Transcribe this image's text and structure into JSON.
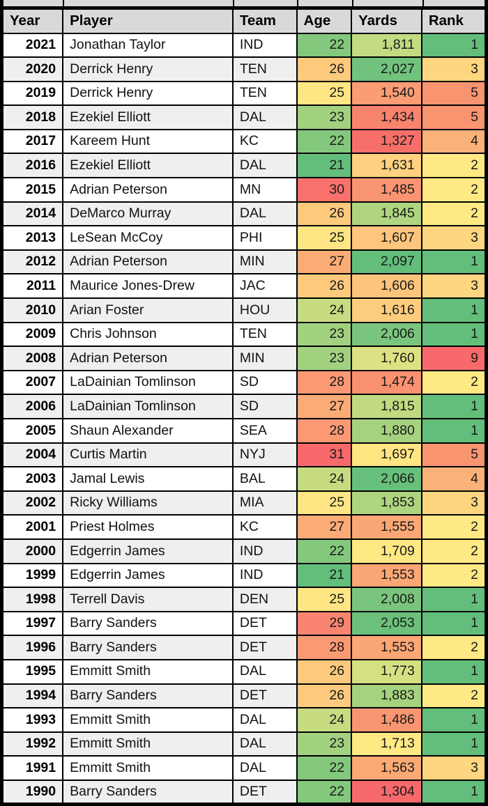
{
  "styles": {
    "header_bg": "#D9D9D9",
    "row_odd_bg": "#FFFFFF",
    "row_even_bg": "#EFEFEF",
    "border_color": "#000000",
    "scale_low_color": "#F8696B",
    "scale_mid_color": "#FFEB84",
    "scale_high_color": "#63BE7B"
  },
  "chart_data": {
    "type": "table",
    "columns": [
      "Year",
      "Player",
      "Team",
      "Age",
      "Yards",
      "Rank"
    ],
    "conditional_formatting": "3-color scale (green-yellow-red) applied to Age, Yards and Rank columns",
    "rows": [
      {
        "year": "2021",
        "player": "Jonathan Taylor",
        "team": "IND",
        "age": "22",
        "yards": "1,811",
        "rank": "1",
        "age_color": "#84C87D",
        "yards_color": "#C3DB81",
        "rank_color": "#63BE7B"
      },
      {
        "year": "2020",
        "player": "Derrick Henry",
        "team": "TEN",
        "age": "26",
        "yards": "2,027",
        "rank": "3",
        "age_color": "#FDCA7D",
        "yards_color": "#70C27C",
        "rank_color": "#FDD67F"
      },
      {
        "year": "2019",
        "player": "Derrick Henry",
        "team": "TEN",
        "age": "25",
        "yards": "1,540",
        "rank": "5",
        "age_color": "#FFE583",
        "yards_color": "#FA9C74",
        "rank_color": "#F99470"
      },
      {
        "year": "2018",
        "player": "Ezekiel Elliott",
        "team": "DAL",
        "age": "23",
        "yards": "1,434",
        "rank": "5",
        "age_color": "#A2D17F",
        "yards_color": "#F9846E",
        "rank_color": "#F99470"
      },
      {
        "year": "2017",
        "player": "Kareem Hunt",
        "team": "KC",
        "age": "22",
        "yards": "1,327",
        "rank": "4",
        "age_color": "#84C87D",
        "yards_color": "#F86F6A",
        "rank_color": "#FBB278"
      },
      {
        "year": "2016",
        "player": "Ezekiel Elliott",
        "team": "DAL",
        "age": "21",
        "yards": "1,631",
        "rank": "2",
        "age_color": "#63BE7B",
        "yards_color": "#FDD17F",
        "rank_color": "#FEE984"
      },
      {
        "year": "2015",
        "player": "Adrian Peterson",
        "team": "MN",
        "age": "30",
        "yards": "1,485",
        "rank": "2",
        "age_color": "#F8716C",
        "yards_color": "#F99572",
        "rank_color": "#FEE984"
      },
      {
        "year": "2014",
        "player": "DeMarco Murray",
        "team": "DAL",
        "age": "26",
        "yards": "1,845",
        "rank": "2",
        "age_color": "#FDCA7D",
        "yards_color": "#AFD580",
        "rank_color": "#FEE984"
      },
      {
        "year": "2013",
        "player": "LeSean McCoy",
        "team": "PHI",
        "age": "25",
        "yards": "1,607",
        "rank": "3",
        "age_color": "#FFE583",
        "yards_color": "#FDC67C",
        "rank_color": "#FDD67F"
      },
      {
        "year": "2012",
        "player": "Adrian Peterson",
        "team": "MIN",
        "age": "27",
        "yards": "2,097",
        "rank": "1",
        "age_color": "#FBAC76",
        "yards_color": "#63BE7B",
        "rank_color": "#63BE7B"
      },
      {
        "year": "2011",
        "player": "Maurice Jones-Drew",
        "team": "JAC",
        "age": "26",
        "yards": "1,606",
        "rank": "3",
        "age_color": "#FDCA7D",
        "yards_color": "#FDC57C",
        "rank_color": "#FDD67F"
      },
      {
        "year": "2010",
        "player": "Arian Foster",
        "team": "HOU",
        "age": "24",
        "yards": "1,616",
        "rank": "1",
        "age_color": "#C7DC81",
        "yards_color": "#FDCD7E",
        "rank_color": "#63BE7B"
      },
      {
        "year": "2009",
        "player": "Chris Johnson",
        "team": "TEN",
        "age": "23",
        "yards": "2,006",
        "rank": "1",
        "age_color": "#A2D17F",
        "yards_color": "#7AC57D",
        "rank_color": "#63BE7B"
      },
      {
        "year": "2008",
        "player": "Adrian Peterson",
        "team": "MIN",
        "age": "23",
        "yards": "1,760",
        "rank": "9",
        "age_color": "#A2D17F",
        "yards_color": "#DCE283",
        "rank_color": "#F8696B"
      },
      {
        "year": "2007",
        "player": "LaDainian Tomlinson",
        "team": "SD",
        "age": "28",
        "yards": "1,474",
        "rank": "2",
        "age_color": "#FA9973",
        "yards_color": "#FA9170",
        "rank_color": "#FEE984"
      },
      {
        "year": "2006",
        "player": "LaDainian Tomlinson",
        "team": "SD",
        "age": "27",
        "yards": "1,815",
        "rank": "1",
        "age_color": "#FBAC76",
        "yards_color": "#C1DA80",
        "rank_color": "#63BE7B"
      },
      {
        "year": "2005",
        "player": "Shaun Alexander",
        "team": "SEA",
        "age": "28",
        "yards": "1,880",
        "rank": "1",
        "age_color": "#FA9973",
        "yards_color": "#A6D27F",
        "rank_color": "#63BE7B"
      },
      {
        "year": "2004",
        "player": "Curtis Martin",
        "team": "NYJ",
        "age": "31",
        "yards": "1,697",
        "rank": "5",
        "age_color": "#F8696B",
        "yards_color": "#FFE683",
        "rank_color": "#F99470"
      },
      {
        "year": "2003",
        "player": "Jamal Lewis",
        "team": "BAL",
        "age": "24",
        "yards": "2,066",
        "rank": "4",
        "age_color": "#C7DC81",
        "yards_color": "#67C07B",
        "rank_color": "#FBB278"
      },
      {
        "year": "2002",
        "player": "Ricky Williams",
        "team": "MIA",
        "age": "25",
        "yards": "1,853",
        "rank": "3",
        "age_color": "#FFE583",
        "yards_color": "#ADD580",
        "rank_color": "#FDD67F"
      },
      {
        "year": "2001",
        "player": "Priest Holmes",
        "team": "KC",
        "age": "27",
        "yards": "1,555",
        "rank": "2",
        "age_color": "#FBAC76",
        "yards_color": "#FBA775",
        "rank_color": "#FEE984"
      },
      {
        "year": "2000",
        "player": "Edgerrin James",
        "team": "IND",
        "age": "22",
        "yards": "1,709",
        "rank": "2",
        "age_color": "#84C87D",
        "yards_color": "#FEE884",
        "rank_color": "#FEE984"
      },
      {
        "year": "1999",
        "player": "Edgerrin James",
        "team": "IND",
        "age": "21",
        "yards": "1,553",
        "rank": "2",
        "age_color": "#63BE7B",
        "yards_color": "#FBA675",
        "rank_color": "#FEE984"
      },
      {
        "year": "1998",
        "player": "Terrell Davis",
        "team": "DEN",
        "age": "25",
        "yards": "2,008",
        "rank": "1",
        "age_color": "#FFE583",
        "yards_color": "#79C57D",
        "rank_color": "#63BE7B"
      },
      {
        "year": "1997",
        "player": "Barry Sanders",
        "team": "DET",
        "age": "29",
        "yards": "2,053",
        "rank": "1",
        "age_color": "#F98570",
        "yards_color": "#6BC17C",
        "rank_color": "#63BE7B"
      },
      {
        "year": "1996",
        "player": "Barry Sanders",
        "team": "DET",
        "age": "28",
        "yards": "1,553",
        "rank": "2",
        "age_color": "#FA9973",
        "yards_color": "#FBA675",
        "rank_color": "#FEE984"
      },
      {
        "year": "1995",
        "player": "Emmitt Smith",
        "team": "DAL",
        "age": "26",
        "yards": "1,773",
        "rank": "1",
        "age_color": "#FDCA7D",
        "yards_color": "#D6E082",
        "rank_color": "#63BE7B"
      },
      {
        "year": "1994",
        "player": "Barry Sanders",
        "team": "DET",
        "age": "26",
        "yards": "1,883",
        "rank": "2",
        "age_color": "#FDCA7D",
        "yards_color": "#A5D27F",
        "rank_color": "#FEE984"
      },
      {
        "year": "1993",
        "player": "Emmitt Smith",
        "team": "DAL",
        "age": "24",
        "yards": "1,486",
        "rank": "1",
        "age_color": "#C7DC81",
        "yards_color": "#F99672",
        "rank_color": "#63BE7B"
      },
      {
        "year": "1992",
        "player": "Emmitt Smith",
        "team": "DAL",
        "age": "23",
        "yards": "1,713",
        "rank": "1",
        "age_color": "#A2D17F",
        "yards_color": "#FEE984",
        "rank_color": "#63BE7B"
      },
      {
        "year": "1991",
        "player": "Emmitt Smith",
        "team": "DAL",
        "age": "22",
        "yards": "1,563",
        "rank": "3",
        "age_color": "#84C87D",
        "yards_color": "#FBA975",
        "rank_color": "#FDD67F"
      },
      {
        "year": "1990",
        "player": "Barry Sanders",
        "team": "DET",
        "age": "22",
        "yards": "1,304",
        "rank": "1",
        "age_color": "#84C87D",
        "yards_color": "#F8696B",
        "rank_color": "#63BE7B"
      }
    ]
  }
}
